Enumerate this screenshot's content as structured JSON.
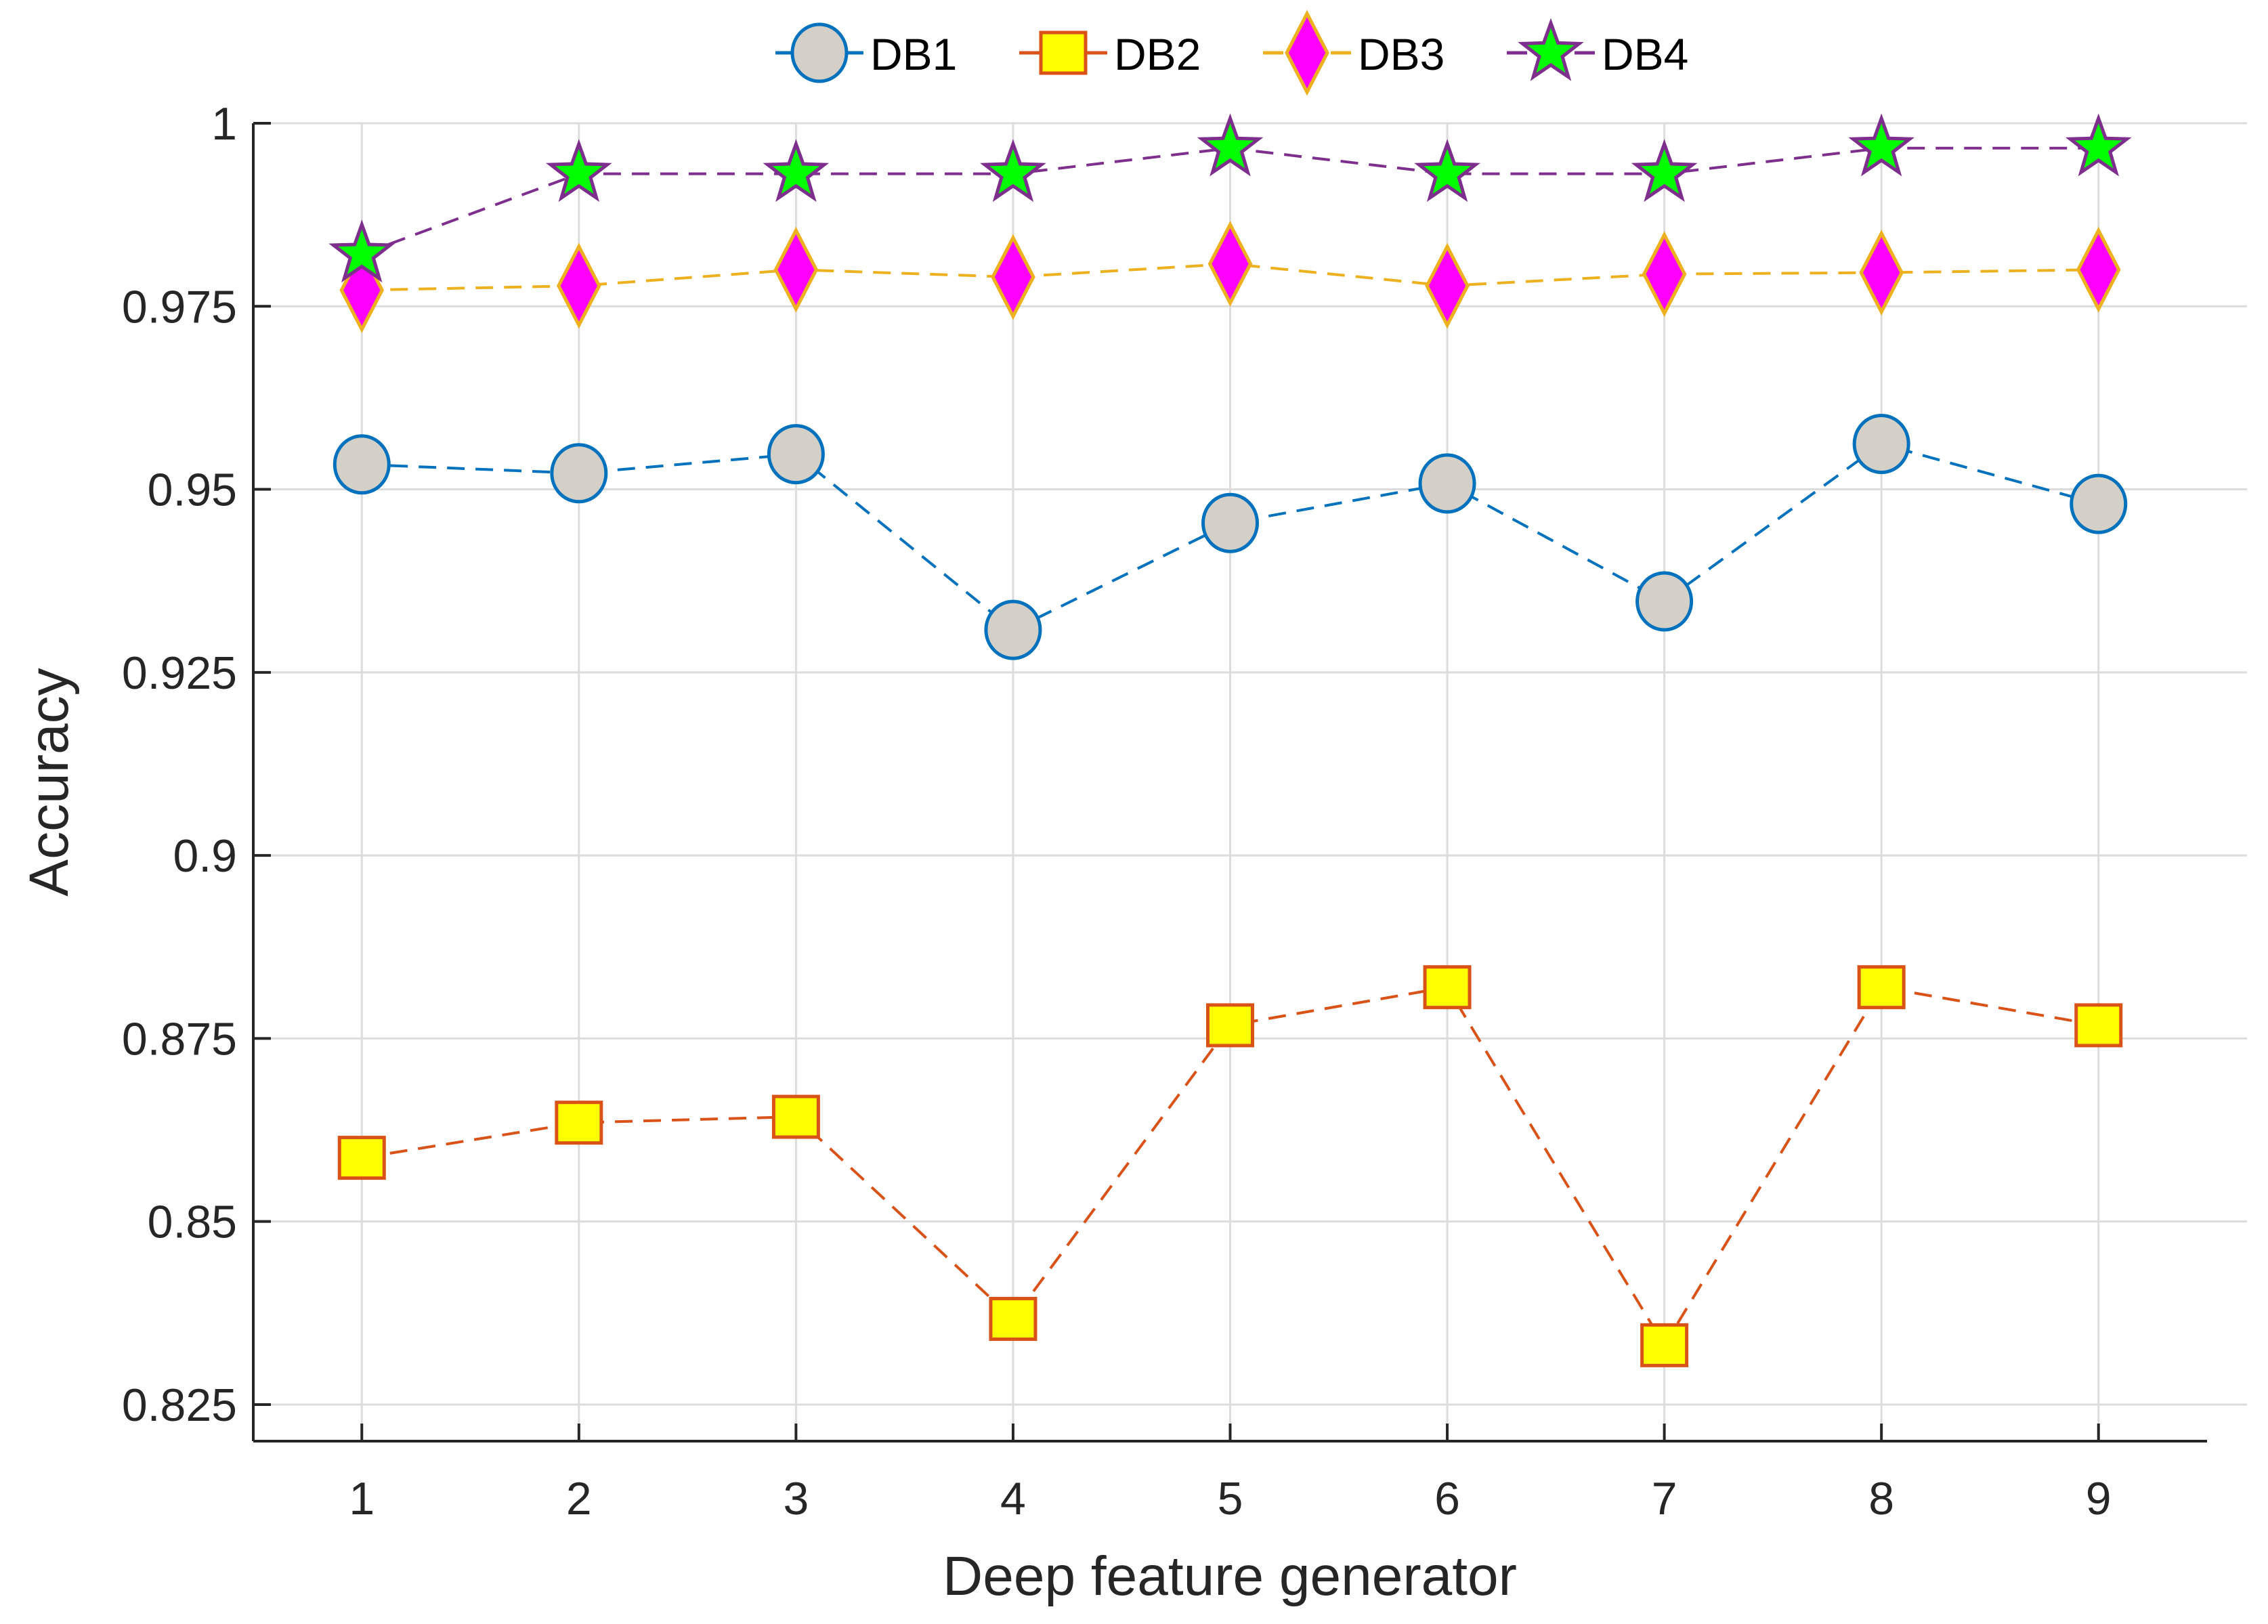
{
  "chart_data": {
    "type": "line",
    "title": "",
    "xlabel": "Deep feature generator",
    "ylabel": "Accuracy",
    "x": [
      1,
      2,
      3,
      4,
      5,
      6,
      7,
      8,
      9
    ],
    "xlim": [
      0.5,
      9.5
    ],
    "ylim": [
      0.82,
      1
    ],
    "xticks": [
      "1",
      "2",
      "3",
      "4",
      "5",
      "6",
      "7",
      "8",
      "9"
    ],
    "yticks": [
      0.825,
      0.85,
      0.875,
      0.9,
      0.925,
      0.95,
      0.975,
      1
    ],
    "ytick_labels": [
      "0.825",
      "0.85",
      "0.875",
      "0.9",
      "0.925",
      "0.95",
      "0.975",
      "1"
    ],
    "grid": true,
    "legend_position": "top-center-outside",
    "series": [
      {
        "name": "DB1",
        "marker": "circle",
        "line_color": "#0072BD",
        "fill": "#D4D0C8",
        "values": [
          0.9534,
          0.9522,
          0.9548,
          0.9308,
          0.9454,
          0.9508,
          0.9347,
          0.9562,
          0.948
        ]
      },
      {
        "name": "DB2",
        "marker": "square",
        "line_color": "#D95319",
        "fill": "#FFFF00",
        "values": [
          0.8587,
          0.8635,
          0.8643,
          0.8367,
          0.8768,
          0.882,
          0.8331,
          0.882,
          0.8768
        ]
      },
      {
        "name": "DB3",
        "marker": "diamond",
        "line_color": "#EDB120",
        "fill": "#FF00FF",
        "values": [
          0.9772,
          0.9778,
          0.98,
          0.979,
          0.9808,
          0.9778,
          0.9794,
          0.9796,
          0.98
        ]
      },
      {
        "name": "DB4",
        "marker": "star",
        "line_color": "#7E2F8E",
        "fill": "#00FF00",
        "values": [
          0.9821,
          0.9931,
          0.9931,
          0.9931,
          0.9966,
          0.9931,
          0.9931,
          0.9966,
          0.9966
        ]
      }
    ]
  }
}
